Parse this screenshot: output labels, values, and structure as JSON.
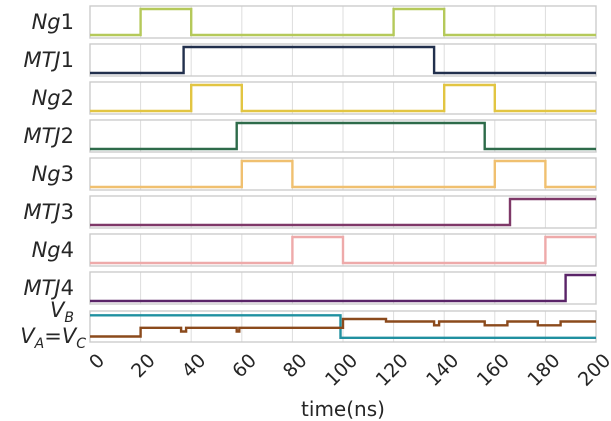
{
  "chart_data": {
    "type": "line",
    "subtype": "digital-timing-diagram",
    "xlabel": "time(ns)",
    "xlim": [
      0,
      200
    ],
    "xticks": [
      0,
      20,
      40,
      60,
      80,
      100,
      120,
      140,
      160,
      180,
      200
    ],
    "grid": true,
    "ylim": [
      0,
      1
    ],
    "series": [
      {
        "name": "Ng1",
        "label_main": "Ng",
        "label_num": "1",
        "color": "#b5c95a",
        "points": [
          [
            0,
            0
          ],
          [
            20,
            0
          ],
          [
            20,
            1
          ],
          [
            40,
            1
          ],
          [
            40,
            0
          ],
          [
            120,
            0
          ],
          [
            120,
            1
          ],
          [
            140,
            1
          ],
          [
            140,
            0
          ],
          [
            200,
            0
          ]
        ]
      },
      {
        "name": "MTJ1",
        "label_main": "MTJ",
        "label_num": "1",
        "color": "#22304d",
        "points": [
          [
            0,
            0
          ],
          [
            37,
            0
          ],
          [
            37,
            1
          ],
          [
            136,
            1
          ],
          [
            136,
            0
          ],
          [
            200,
            0
          ]
        ]
      },
      {
        "name": "Ng2",
        "label_main": "Ng",
        "label_num": "2",
        "color": "#e2c542",
        "points": [
          [
            0,
            0
          ],
          [
            40,
            0
          ],
          [
            40,
            1
          ],
          [
            60,
            1
          ],
          [
            60,
            0
          ],
          [
            140,
            0
          ],
          [
            140,
            1
          ],
          [
            160,
            1
          ],
          [
            160,
            0
          ],
          [
            200,
            0
          ]
        ]
      },
      {
        "name": "MTJ2",
        "label_main": "MTJ",
        "label_num": "2",
        "color": "#2e6b4a",
        "points": [
          [
            0,
            0
          ],
          [
            58,
            0
          ],
          [
            58,
            1
          ],
          [
            156,
            1
          ],
          [
            156,
            0
          ],
          [
            200,
            0
          ]
        ]
      },
      {
        "name": "Ng3",
        "label_main": "Ng",
        "label_num": "3",
        "color": "#f0c070",
        "points": [
          [
            0,
            0
          ],
          [
            60,
            0
          ],
          [
            60,
            1
          ],
          [
            80,
            1
          ],
          [
            80,
            0
          ],
          [
            160,
            0
          ],
          [
            160,
            1
          ],
          [
            180,
            1
          ],
          [
            180,
            0
          ],
          [
            200,
            0
          ]
        ]
      },
      {
        "name": "MTJ3",
        "label_main": "MTJ",
        "label_num": "3",
        "color": "#7e3868",
        "points": [
          [
            0,
            0
          ],
          [
            166,
            0
          ],
          [
            166,
            1
          ],
          [
            200,
            1
          ]
        ]
      },
      {
        "name": "Ng4",
        "label_main": "Ng",
        "label_num": "4",
        "color": "#eeaaaa",
        "points": [
          [
            0,
            0
          ],
          [
            80,
            0
          ],
          [
            80,
            1
          ],
          [
            100,
            1
          ],
          [
            100,
            0
          ],
          [
            180,
            0
          ],
          [
            180,
            1
          ],
          [
            200,
            1
          ]
        ]
      },
      {
        "name": "MTJ4",
        "label_main": "MTJ",
        "label_num": "4",
        "color": "#5a2468",
        "points": [
          [
            0,
            0
          ],
          [
            188,
            0
          ],
          [
            188,
            1
          ],
          [
            200,
            1
          ]
        ]
      }
    ],
    "bottom_panel": {
      "label_top_main": "V",
      "label_top_sub": "B",
      "label_bot_main": "V",
      "label_bot_sub": "A",
      "label_bot_eq": "=",
      "label_bot_main2": "V",
      "label_bot_sub2": "C",
      "series": [
        {
          "name": "V_B",
          "color": "#2090a0",
          "points": [
            [
              0,
              0.95
            ],
            [
              99,
              0.95
            ],
            [
              99,
              0.05
            ],
            [
              200,
              0.05
            ]
          ]
        },
        {
          "name": "V_A = V_C",
          "color": "#8b4a1c",
          "points": [
            [
              0,
              0.1
            ],
            [
              20,
              0.1
            ],
            [
              20,
              0.45
            ],
            [
              36,
              0.45
            ],
            [
              36,
              0.3
            ],
            [
              38,
              0.3
            ],
            [
              38,
              0.45
            ],
            [
              58,
              0.45
            ],
            [
              58,
              0.3
            ],
            [
              59,
              0.3
            ],
            [
              59,
              0.45
            ],
            [
              100,
              0.45
            ],
            [
              100,
              0.8
            ],
            [
              117,
              0.8
            ],
            [
              117,
              0.7
            ],
            [
              136,
              0.7
            ],
            [
              136,
              0.55
            ],
            [
              138,
              0.55
            ],
            [
              138,
              0.7
            ],
            [
              156,
              0.7
            ],
            [
              156,
              0.55
            ],
            [
              165,
              0.55
            ],
            [
              165,
              0.7
            ],
            [
              177,
              0.7
            ],
            [
              177,
              0.55
            ],
            [
              186,
              0.55
            ],
            [
              186,
              0.7
            ],
            [
              200,
              0.7
            ]
          ]
        }
      ]
    }
  }
}
